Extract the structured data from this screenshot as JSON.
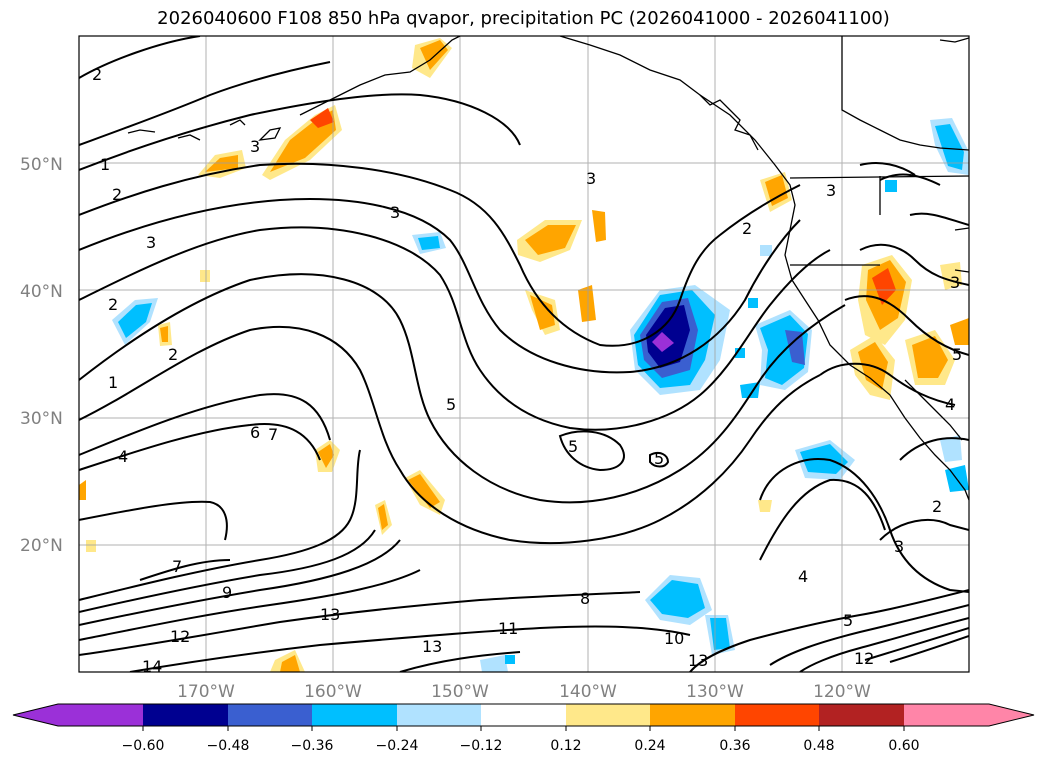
{
  "title": "2026040600 F108 850 hPa qvapor, precipitation PC (2026041000 - 2026041100)",
  "map": {
    "lon_range": [
      -180,
      -110
    ],
    "lat_range": [
      10,
      60
    ],
    "lat_ticks": [
      {
        "value": 20,
        "label": "20°N"
      },
      {
        "value": 30,
        "label": "30°N"
      },
      {
        "value": 40,
        "label": "40°N"
      },
      {
        "value": 50,
        "label": "50°N"
      }
    ],
    "lon_ticks": [
      {
        "value": -170,
        "label": "170°W"
      },
      {
        "value": -160,
        "label": "160°W"
      },
      {
        "value": -150,
        "label": "150°W"
      },
      {
        "value": -140,
        "label": "140°W"
      },
      {
        "value": -130,
        "label": "130°W"
      },
      {
        "value": -120,
        "label": "120°W"
      }
    ],
    "gridlines": true,
    "contour_labels": [
      "2",
      "1",
      "2",
      "3",
      "2",
      "1",
      "2",
      "4",
      "6",
      "7",
      "7",
      "9",
      "12",
      "13",
      "14",
      "3",
      "3",
      "3",
      "2",
      "5",
      "5",
      "5",
      "8",
      "11",
      "13",
      "10",
      "13",
      "12",
      "5",
      "4",
      "3",
      "2",
      "4",
      "5",
      "3",
      "3"
    ]
  },
  "colorbar": {
    "tick_labels": [
      "−0.60",
      "−0.48",
      "−0.36",
      "−0.24",
      "−0.12",
      "0.12",
      "0.24",
      "0.36",
      "0.48",
      "0.60"
    ],
    "colors": [
      "#9b30d8",
      "#000090",
      "#3a5fd0",
      "#00bfff",
      "#b0e2ff",
      "#ffffff",
      "#ffe88a",
      "#ffa500",
      "#ff4500",
      "#b22222",
      "#ff85a8"
    ]
  }
}
